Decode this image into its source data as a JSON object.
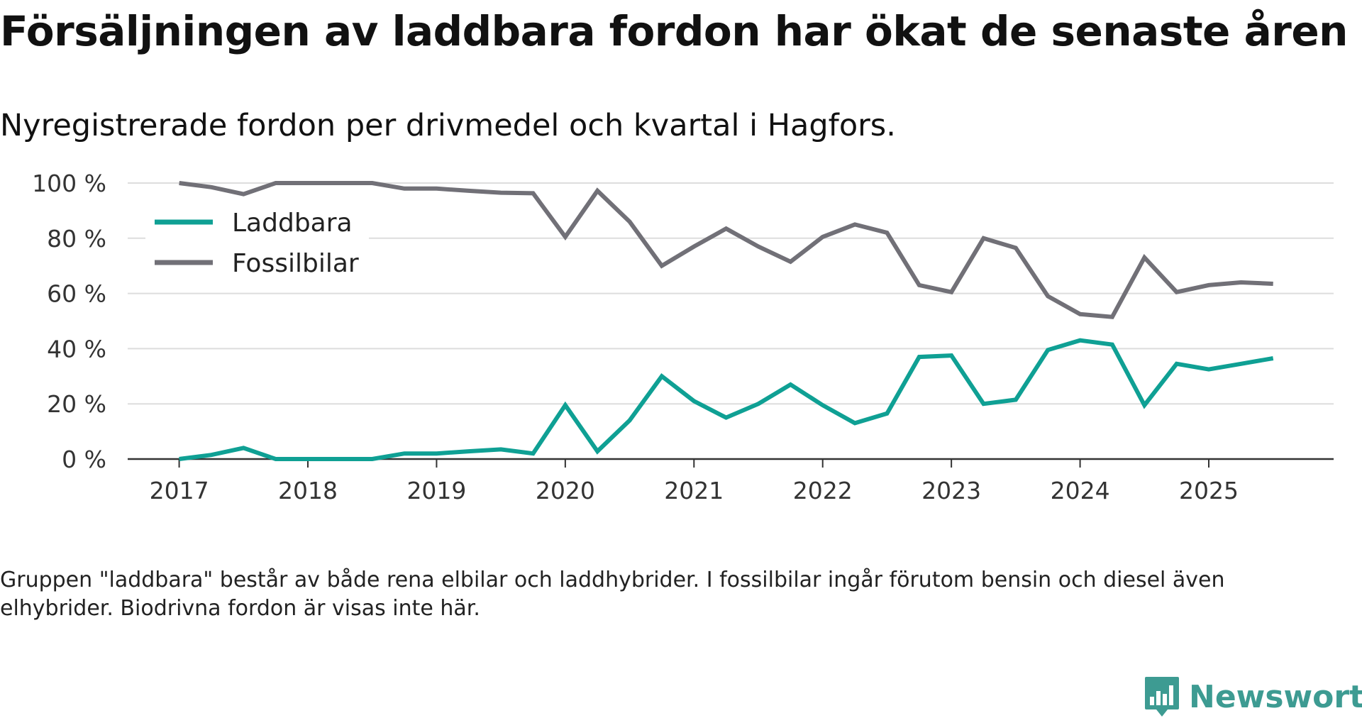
{
  "title": "Försäljningen av laddbara fordon har ökat de senaste åren",
  "subtitle": "Nyregistrerade fordon per drivmedel och kvartal i Hagfors.",
  "footnote": "Gruppen \"laddbara\" består av både rena elbilar och laddhybrider. I fossilbilar ingår förutom bensin och diesel även elhybrider. Biodrivna fordon är visas inte här.",
  "brand": {
    "name": "Newsworthy",
    "color": "#3d9b92"
  },
  "chart_data": {
    "type": "line",
    "title": "Försäljningen av laddbara fordon har ökat de senaste åren",
    "xlabel": "",
    "ylabel": "",
    "ylim": [
      0,
      100
    ],
    "y_ticks": [
      0,
      20,
      40,
      60,
      80,
      100
    ],
    "y_tick_labels": [
      "0 %",
      "20 %",
      "40 %",
      "60 %",
      "80 %",
      "100 %"
    ],
    "x_ticks": [
      2017,
      2018,
      2019,
      2020,
      2021,
      2022,
      2023,
      2024,
      2025
    ],
    "x_tick_labels": [
      "2017",
      "2018",
      "2019",
      "2020",
      "2021",
      "2022",
      "2023",
      "2024",
      "2025"
    ],
    "grid": true,
    "legend_position": "top-left",
    "x": [
      2017.0,
      2017.25,
      2017.5,
      2017.75,
      2018.0,
      2018.25,
      2018.5,
      2018.75,
      2019.0,
      2019.25,
      2019.5,
      2019.75,
      2020.0,
      2020.25,
      2020.5,
      2020.75,
      2021.0,
      2021.25,
      2021.5,
      2021.75,
      2022.0,
      2022.25,
      2022.5,
      2022.75,
      2023.0,
      2023.25,
      2023.5,
      2023.75,
      2024.0,
      2024.25,
      2024.5,
      2024.75,
      2025.0,
      2025.25,
      2025.5
    ],
    "series": [
      {
        "name": "Laddbara",
        "color": "#0fa094",
        "values": [
          0,
          1.5,
          4,
          0,
          0,
          0,
          0,
          2,
          2,
          2.8,
          3.5,
          2,
          19.5,
          2.8,
          14,
          30,
          21,
          15,
          20,
          27,
          19.5,
          13,
          16.5,
          37,
          37.5,
          20,
          21.5,
          39.5,
          43,
          41.5,
          19.5,
          34.5,
          32.5,
          34.5,
          36.5
        ]
      },
      {
        "name": "Fossilbilar",
        "color": "#717077",
        "values": [
          100,
          98.5,
          96,
          100,
          100,
          100,
          100,
          98,
          98,
          97.2,
          96.5,
          96.3,
          80.5,
          97.2,
          86,
          70,
          77,
          83.5,
          77,
          71.5,
          80.5,
          85,
          82,
          63,
          60.5,
          80,
          76.5,
          59,
          52.5,
          51.5,
          73,
          60.5,
          63,
          64,
          63.5
        ]
      }
    ]
  }
}
